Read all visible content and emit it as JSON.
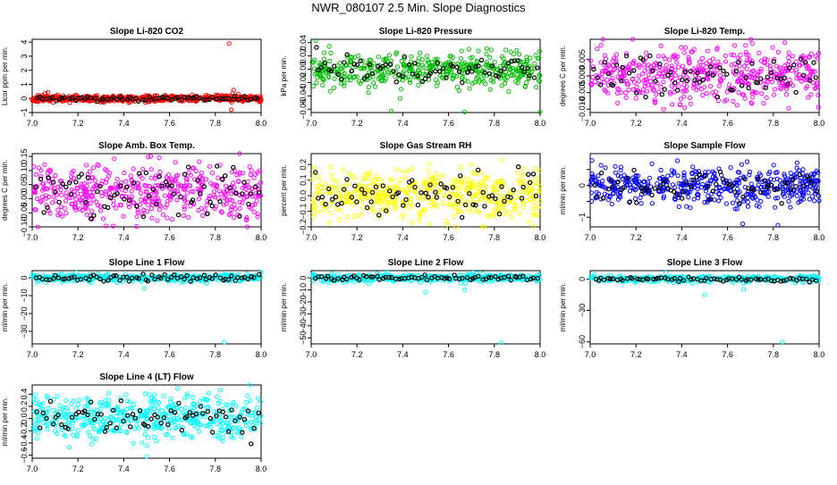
{
  "main_title": "NWR_080107  2.5 Min. Slope Diagnostics",
  "chart_data": [
    {
      "type": "scatter",
      "title": "Slope Li-820 CO2",
      "ylabel": "Licor ppm per min.",
      "color": "#ff0000",
      "xlim": [
        7.0,
        8.0
      ],
      "xticks": [
        "7.0",
        "7.2",
        "7.4",
        "7.6",
        "7.8",
        "8.0"
      ],
      "ylim": [
        -1,
        4.2
      ],
      "yticks": [
        -1,
        0,
        1,
        2,
        3,
        4
      ],
      "ytick_labels": [
        "−1",
        "0",
        "1",
        "2",
        "3",
        "4"
      ],
      "spread": 0.12,
      "center": 0,
      "outliers": [
        {
          "x": 7.86,
          "y": 3.9
        },
        {
          "x": 7.87,
          "y": -0.8
        },
        {
          "x": 7.88,
          "y": 0.6
        },
        {
          "x": 7.9,
          "y": 0.3
        }
      ],
      "n": 520,
      "seed": 11
    },
    {
      "type": "scatter",
      "title": "Slope Li-820 Pressure",
      "ylabel": "kPa per min.",
      "color": "#00c000",
      "xlim": [
        7.0,
        8.0
      ],
      "xticks": [
        "7.0",
        "7.2",
        "7.4",
        "7.6",
        "7.8",
        "8.0"
      ],
      "ylim": [
        -0.065,
        0.045
      ],
      "yticks": [
        -0.06,
        -0.04,
        -0.02,
        0.0,
        0.02,
        0.04
      ],
      "ytick_labels": [
        "−0.06",
        "−0.04",
        "−0.02",
        "0.00",
        "0.02",
        "0.04"
      ],
      "spread": 0.012,
      "center": 0.0,
      "outliers": [
        {
          "x": 7.02,
          "y": 0.043
        },
        {
          "x": 7.1,
          "y": -0.028
        },
        {
          "x": 7.35,
          "y": -0.063
        },
        {
          "x": 7.67,
          "y": -0.064
        },
        {
          "x": 8.0,
          "y": -0.064
        }
      ],
      "n": 460,
      "seed": 23
    },
    {
      "type": "scatter",
      "title": "Slope Li-820 Temp.",
      "ylabel": "degrees C per min.",
      "color": "#ff00ff",
      "xlim": [
        7.0,
        8.0
      ],
      "xticks": [
        "7.0",
        "7.2",
        "7.4",
        "7.6",
        "7.8",
        "8.0"
      ],
      "ylim": [
        -0.011,
        0.011
      ],
      "yticks": [
        -0.01,
        -0.005,
        0.0,
        0.005
      ],
      "ytick_labels": [
        "−0.010",
        "−0.005",
        "0.000",
        "0.005"
      ],
      "spread": 0.004,
      "center": 0.0,
      "outliers": [],
      "n": 480,
      "seed": 37
    },
    {
      "type": "scatter",
      "title": "Slope Amb. Box Temp.",
      "ylabel": "degrees C per min.",
      "color": "#ff00ff",
      "xlim": [
        7.0,
        8.0
      ],
      "xticks": [
        "7.0",
        "7.2",
        "7.4",
        "7.6",
        "7.8",
        "8.0"
      ],
      "ylim": [
        -0.1,
        0.16
      ],
      "yticks": [
        -0.1,
        -0.05,
        0.0,
        0.05,
        0.1,
        0.15
      ],
      "ytick_labels": [
        "−0.10",
        "−0.05",
        "0.00",
        "0.05",
        "0.10",
        "0.15"
      ],
      "spread": 0.05,
      "center": 0.02,
      "outliers": [],
      "n": 480,
      "seed": 41
    },
    {
      "type": "scatter",
      "title": "Slope Gas Stream RH",
      "ylabel": "percent per min.",
      "color": "#ffff00",
      "xlim": [
        7.0,
        8.0
      ],
      "xticks": [
        "7.0",
        "7.2",
        "7.4",
        "7.6",
        "7.8",
        "8.0"
      ],
      "ylim": [
        -0.2,
        0.27
      ],
      "yticks": [
        -0.2,
        -0.1,
        0.0,
        0.1,
        0.2
      ],
      "ytick_labels": [
        "−0.2",
        "−0.1",
        "0.0",
        "0.1",
        "0.2"
      ],
      "spread": 0.08,
      "center": 0.01,
      "outliers": [],
      "n": 480,
      "seed": 53
    },
    {
      "type": "scatter",
      "title": "Slope Sample Flow",
      "ylabel": "ml/min per min.",
      "color": "#0000ff",
      "xlim": [
        7.0,
        8.0
      ],
      "xticks": [
        "7.0",
        "7.2",
        "7.4",
        "7.6",
        "7.8",
        "8.0"
      ],
      "ylim": [
        -1.3,
        1.0
      ],
      "yticks": [
        -1,
        -0.5,
        0,
        0.5
      ],
      "ytick_labels": [
        "−1",
        "",
        "0",
        ""
      ],
      "spread": 0.3,
      "center": 0.0,
      "outliers": [
        {
          "x": 7.82,
          "y": -1.25
        }
      ],
      "n": 480,
      "seed": 61
    },
    {
      "type": "scatter",
      "title": "Slope Line 1 Flow",
      "ylabel": "ml/min per min.",
      "color": "#00ffff",
      "xlim": [
        7.0,
        8.0
      ],
      "xticks": [
        "7.0",
        "7.2",
        "7.4",
        "7.6",
        "7.8",
        "8.0"
      ],
      "ylim": [
        -37,
        4
      ],
      "yticks": [
        -30,
        -20,
        -10,
        0
      ],
      "ytick_labels": [
        "−30",
        "−20",
        "−10",
        "0"
      ],
      "spread": 1.0,
      "center": 0.0,
      "outliers": [
        {
          "x": 7.33,
          "y": 2.0
        },
        {
          "x": 7.49,
          "y": -6.0
        },
        {
          "x": 7.84,
          "y": -36.0
        },
        {
          "x": 8.0,
          "y": 3.0
        }
      ],
      "n": 400,
      "seed": 71
    },
    {
      "type": "scatter",
      "title": "Slope Line 2 Flow",
      "ylabel": "ml/min per min.",
      "color": "#00ffff",
      "xlim": [
        7.0,
        8.0
      ],
      "xticks": [
        "7.0",
        "7.2",
        "7.4",
        "7.6",
        "7.8",
        "8.0"
      ],
      "ylim": [
        -55,
        6
      ],
      "yticks": [
        -50,
        -40,
        -30,
        -20,
        -10,
        0
      ],
      "ytick_labels": [
        "−50",
        "−40",
        "−30",
        "−20",
        "−10",
        "0"
      ],
      "spread": 1.5,
      "center": 0.0,
      "outliers": [
        {
          "x": 7.33,
          "y": 5.0
        },
        {
          "x": 7.5,
          "y": -12.0
        },
        {
          "x": 7.67,
          "y": -10.0
        },
        {
          "x": 7.83,
          "y": -54.0
        }
      ],
      "n": 400,
      "seed": 83
    },
    {
      "type": "scatter",
      "title": "Slope Line 3 Flow",
      "ylabel": "ml/min per min.",
      "color": "#00ffff",
      "xlim": [
        7.0,
        8.0
      ],
      "xticks": [
        "7.0",
        "7.2",
        "7.4",
        "7.6",
        "7.8",
        "8.0"
      ],
      "ylim": [
        -62,
        8
      ],
      "yticks": [
        -60,
        -30,
        0
      ],
      "ytick_labels": [
        "−60",
        "−30",
        "0"
      ],
      "spread": 1.5,
      "center": 0.0,
      "outliers": [
        {
          "x": 7.33,
          "y": 6.0
        },
        {
          "x": 7.5,
          "y": -15.0
        },
        {
          "x": 7.67,
          "y": -10.0
        },
        {
          "x": 7.84,
          "y": -60.0
        }
      ],
      "n": 400,
      "seed": 97
    },
    {
      "type": "scatter",
      "title": "Slope Line 4 (LT) Flow",
      "ylabel": "ml/min per min.",
      "color": "#00ffff",
      "xlim": [
        7.0,
        8.0
      ],
      "xticks": [
        "7.0",
        "7.2",
        "7.4",
        "7.6",
        "7.8",
        "8.0"
      ],
      "ylim": [
        -0.65,
        0.55
      ],
      "yticks": [
        -0.6,
        -0.4,
        -0.2,
        0.0,
        0.2,
        0.4
      ],
      "ytick_labels": [
        "−0.6",
        "−0.4",
        "−0.2",
        "0.0",
        "0.2",
        "0.4"
      ],
      "spread": 0.18,
      "center": 0.0,
      "outliers": [
        {
          "x": 7.5,
          "y": -0.62
        },
        {
          "x": 7.95,
          "y": 0.55
        }
      ],
      "n": 480,
      "seed": 109
    }
  ]
}
